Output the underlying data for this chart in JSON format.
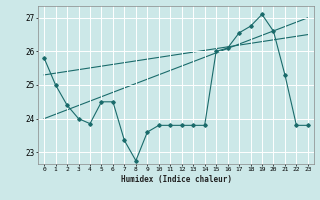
{
  "xlabel": "Humidex (Indice chaleur)",
  "bg_color": "#cce8e8",
  "grid_color": "#ffffff",
  "line_color": "#1a6b6b",
  "xlim": [
    -0.5,
    23.5
  ],
  "ylim": [
    22.65,
    27.35
  ],
  "yticks": [
    23,
    24,
    25,
    26,
    27
  ],
  "xticks": [
    0,
    1,
    2,
    3,
    4,
    5,
    6,
    7,
    8,
    9,
    10,
    11,
    12,
    13,
    14,
    15,
    16,
    17,
    18,
    19,
    20,
    21,
    22,
    23
  ],
  "series1_x": [
    0,
    1,
    2,
    3,
    4,
    5,
    6,
    7,
    8,
    9,
    10,
    11,
    12,
    13,
    14,
    15,
    16,
    17,
    18,
    19,
    20,
    21,
    22,
    23
  ],
  "series1_y": [
    25.8,
    25.0,
    24.4,
    24.0,
    23.85,
    24.5,
    24.5,
    23.35,
    22.75,
    23.6,
    23.8,
    23.8,
    23.8,
    23.8,
    23.8,
    26.0,
    26.1,
    26.55,
    26.75,
    27.1,
    26.6,
    25.3,
    23.8,
    23.8
  ],
  "line1_x": [
    0,
    23
  ],
  "line1_y": [
    24.0,
    27.0
  ],
  "line2_x": [
    0,
    23
  ],
  "line2_y": [
    25.3,
    26.5
  ]
}
